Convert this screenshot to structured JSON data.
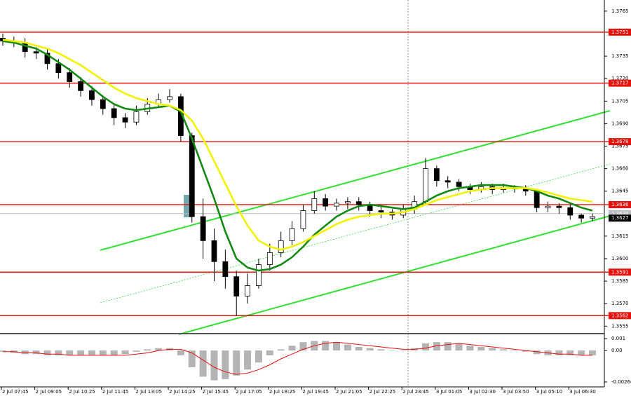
{
  "chart_data": [
    {
      "type": "candlestick",
      "categories": [
        "2 Jul 07:45",
        null,
        null,
        "2 Jul 09:05",
        null,
        null,
        "2 Jul 10:25",
        null,
        null,
        "2 Jul 11:45",
        null,
        null,
        "2 Jul 13:05",
        null,
        null,
        "2 Jul 14:25",
        null,
        null,
        "2 Jul 15:45",
        null,
        null,
        "2 Jul 17:05",
        null,
        null,
        "2 Jul 18:25",
        null,
        null,
        "2 Jul 19:45",
        null,
        null,
        "2 Jul 21:05",
        null,
        null,
        "2 Jul 22:25",
        null,
        null,
        "2 Jul 23:45",
        null,
        null,
        "3 Jul 01:05",
        null,
        null,
        "3 Jul 02:30",
        null,
        null,
        "3 Jul 03:50",
        null,
        null,
        "3 Jul 05:10",
        null,
        null,
        "3 Jul 06:30",
        null,
        null
      ],
      "open": [
        1.3747,
        1.3745,
        1.3744,
        1.3738,
        1.3737,
        1.373,
        1.3724,
        1.3718,
        1.3712,
        1.3706,
        1.37,
        1.3694,
        1.3691,
        1.3698,
        1.3703,
        1.3706,
        1.3708,
        1.3682,
        1.3628,
        1.3612,
        1.3598,
        1.3588,
        1.3575,
        1.3582,
        1.3596,
        1.3604,
        1.3612,
        1.362,
        1.3632,
        1.364,
        1.3635,
        1.3637,
        1.3638,
        1.3636,
        1.3632,
        1.3631,
        1.3629,
        1.3633,
        1.3638,
        1.366,
        1.3652,
        1.3651,
        1.3648,
        1.3646,
        1.3648,
        1.3646,
        1.3647,
        1.3647,
        1.3645,
        1.3634,
        1.3635,
        1.3634,
        1.3629,
        1.3627
      ],
      "high": [
        1.375,
        1.3748,
        1.3747,
        1.3741,
        1.374,
        1.3733,
        1.3727,
        1.3721,
        1.3715,
        1.3709,
        1.3703,
        1.3697,
        1.3702,
        1.3707,
        1.371,
        1.3713,
        1.371,
        1.3684,
        1.364,
        1.362,
        1.3606,
        1.3592,
        1.359,
        1.36,
        1.361,
        1.3618,
        1.3625,
        1.3636,
        1.3645,
        1.3643,
        1.364,
        1.3641,
        1.3641,
        1.3638,
        1.3635,
        1.3633,
        1.3636,
        1.3642,
        1.3667,
        1.3662,
        1.3655,
        1.3653,
        1.365,
        1.3651,
        1.365,
        1.365,
        1.3649,
        1.3649,
        1.3646,
        1.3638,
        1.3637,
        1.3636,
        1.363,
        1.363
      ],
      "low": [
        1.3742,
        1.3741,
        1.3734,
        1.3733,
        1.3726,
        1.372,
        1.3714,
        1.3708,
        1.3702,
        1.3696,
        1.3689,
        1.3687,
        1.3689,
        1.3696,
        1.3701,
        1.3704,
        1.3678,
        1.3624,
        1.36,
        1.3585,
        1.358,
        1.3562,
        1.357,
        1.358,
        1.3592,
        1.3601,
        1.3609,
        1.3618,
        1.363,
        1.3632,
        1.3632,
        1.3633,
        1.3632,
        1.3628,
        1.3627,
        1.3626,
        1.3627,
        1.363,
        1.3636,
        1.3648,
        1.3647,
        1.3645,
        1.3643,
        1.3644,
        1.3643,
        1.3644,
        1.3644,
        1.3642,
        1.3631,
        1.3631,
        1.363,
        1.3626,
        1.3624,
        1.3625
      ],
      "close": [
        1.3745,
        1.3744,
        1.3738,
        1.3737,
        1.373,
        1.3724,
        1.3718,
        1.3712,
        1.3706,
        1.37,
        1.3694,
        1.3691,
        1.3698,
        1.3703,
        1.3706,
        1.3708,
        1.3682,
        1.3628,
        1.3612,
        1.3598,
        1.3588,
        1.3575,
        1.3582,
        1.3596,
        1.3604,
        1.3612,
        1.362,
        1.3632,
        1.364,
        1.3635,
        1.3637,
        1.3638,
        1.3636,
        1.3632,
        1.3631,
        1.3629,
        1.3633,
        1.3638,
        1.366,
        1.3652,
        1.3651,
        1.3648,
        1.3646,
        1.3648,
        1.3646,
        1.3647,
        1.3647,
        1.3645,
        1.3634,
        1.3635,
        1.3634,
        1.3629,
        1.3627,
        1.3628
      ],
      "overlays": [
        {
          "color": "#138a13",
          "values": [
            1.3745,
            1.3744,
            1.3742,
            1.374,
            1.3736,
            1.3731,
            1.3726,
            1.372,
            1.3714,
            1.3708,
            1.3703,
            1.37,
            1.3699,
            1.37,
            1.3701,
            1.3702,
            1.3698,
            1.368,
            1.366,
            1.364,
            1.3618,
            1.36,
            1.3594,
            1.3592,
            1.3593,
            1.3596,
            1.3601,
            1.3608,
            1.3616,
            1.3622,
            1.3628,
            1.3632,
            1.3635,
            1.3636,
            1.3635,
            1.3634,
            1.3633,
            1.3634,
            1.3638,
            1.3642,
            1.3645,
            1.3647,
            1.3648,
            1.3649,
            1.3649,
            1.3649,
            1.3648,
            1.3647,
            1.3645,
            1.3642,
            1.364,
            1.3637,
            1.3634,
            1.3632
          ]
        },
        {
          "color": "#f2f200",
          "values": [
            1.3746,
            1.3745,
            1.3744,
            1.3742,
            1.374,
            1.3737,
            1.3733,
            1.3729,
            1.3724,
            1.3719,
            1.3714,
            1.371,
            1.3707,
            1.3705,
            1.3703,
            1.3702,
            1.3699,
            1.3692,
            1.368,
            1.3665,
            1.365,
            1.3635,
            1.3622,
            1.3612,
            1.3608,
            1.3606,
            1.3608,
            1.3611,
            1.3615,
            1.3619,
            1.3623,
            1.3626,
            1.3628,
            1.3629,
            1.363,
            1.363,
            1.3631,
            1.3633,
            1.3636,
            1.3639,
            1.3641,
            1.3643,
            1.3645,
            1.3646,
            1.3647,
            1.3647,
            1.3647,
            1.3647,
            1.3646,
            1.3644,
            1.3642,
            1.364,
            1.3639,
            1.3638
          ]
        }
      ],
      "levels": [
        1.3751,
        1.3717,
        1.3678,
        1.3636,
        1.3591,
        1.3562
      ],
      "level_color": "#e8100a",
      "bid_line": {
        "value": 1.363,
        "label": "1.3630"
      },
      "last_price": 1.3627,
      "ylim": [
        1.355,
        1.37715
      ],
      "yticks": [
        1.3765,
        1.3735,
        {
          "value": 1.372,
          "label": "1.3720"
        },
        1.3705,
        {
          "value": 1.369,
          "label": "1.3690"
        },
        1.3675,
        {
          "value": 1.366,
          "label": "1.3660"
        },
        1.3645,
        1.3615,
        {
          "value": 1.36,
          "label": "1.3600"
        },
        1.3585,
        {
          "value": 1.357,
          "label": "1.3570"
        },
        1.3555
      ]
    },
    {
      "type": "bar",
      "color": "#b4b4b4",
      "values": [
        -0.0001,
        -0.0002,
        -0.0003,
        -0.0003,
        -0.0004,
        -0.0004,
        -0.0004,
        -0.0004,
        -0.0004,
        -0.0004,
        -0.0004,
        -0.0003,
        -0.0001,
        0.0001,
        0.0002,
        0.0002,
        -0.0004,
        -0.0014,
        -0.0022,
        -0.0025,
        -0.0024,
        -0.0021,
        -0.0016,
        -0.001,
        -0.0004,
        0.0001,
        0.0004,
        0.0007,
        0.0008,
        0.0008,
        0.0007,
        0.0005,
        0.0003,
        0.0002,
        0.0001,
        0,
        0,
        0.0002,
        0.0006,
        0.0007,
        0.0007,
        0.0006,
        0.0004,
        0.0003,
        0.0002,
        0.0001,
        0,
        -0.0001,
        -0.0003,
        -0.0004,
        -0.0004,
        -0.0004,
        -0.0004,
        -0.0004
      ],
      "signal": {
        "color": "#e8100a",
        "values": [
          -0.0001,
          -0.0001,
          -0.0002,
          -0.0002,
          -0.0003,
          -0.0003,
          -0.0004,
          -0.0004,
          -0.0004,
          -0.0004,
          -0.0004,
          -0.0004,
          -0.0003,
          -0.0002,
          0,
          0.0001,
          0.0001,
          -0.0002,
          -0.0008,
          -0.0014,
          -0.0018,
          -0.002,
          -0.0019,
          -0.0016,
          -0.0012,
          -0.0007,
          -0.0003,
          0.0001,
          0.0004,
          0.0006,
          0.0007,
          0.0006,
          0.0005,
          0.0004,
          0.0003,
          0.0002,
          0.0001,
          0.0001,
          0.0002,
          0.0004,
          0.0005,
          0.0006,
          0.0005,
          0.0004,
          0.0003,
          0.0002,
          0.0001,
          0,
          -0.0001,
          -0.0002,
          -0.0003,
          -0.0003,
          -0.0004,
          -0.0004
        ]
      },
      "ylim": [
        -0.00264,
        0.0013
      ],
      "yticks": [
        0.001,
        {
          "value": 0,
          "label": "0.00"
        },
        -0.00264
      ]
    }
  ]
}
